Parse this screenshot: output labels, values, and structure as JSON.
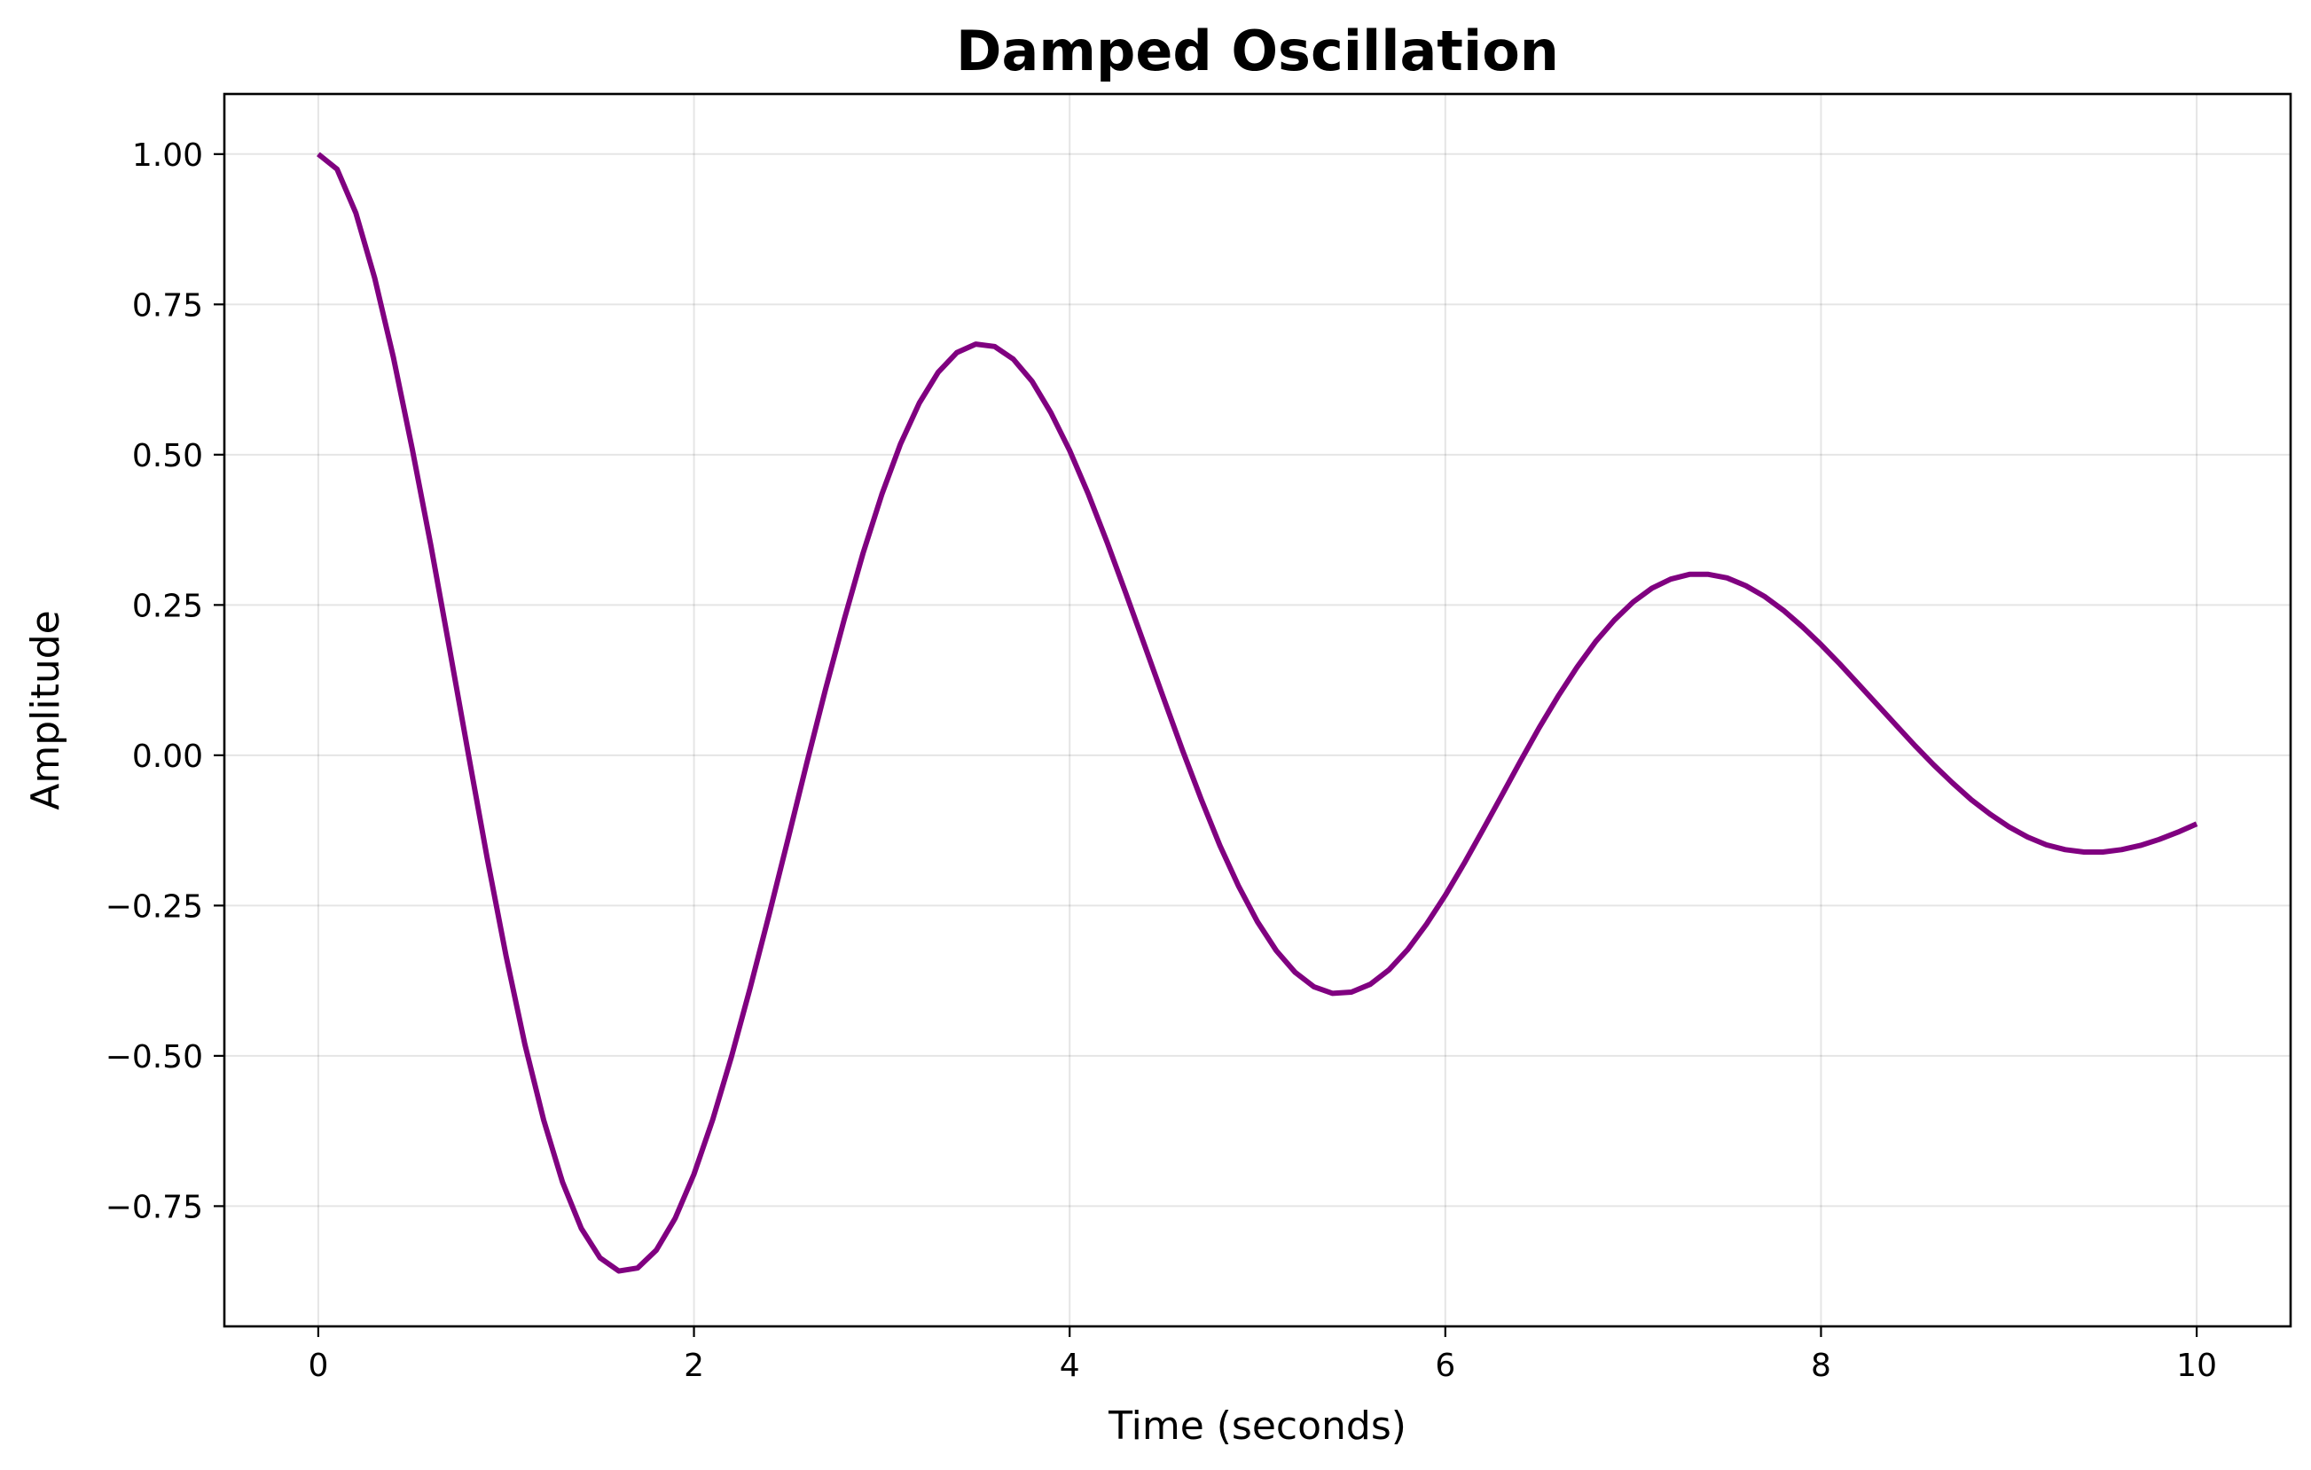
{
  "chart_data": {
    "type": "line",
    "title": "Damped Oscillation",
    "xlabel": "Time (seconds)",
    "ylabel": "Amplitude",
    "xlim": [
      -0.5,
      10.5
    ],
    "ylim": [
      -0.95,
      1.1
    ],
    "xticks": [
      0,
      2,
      4,
      6,
      8,
      10
    ],
    "xtick_labels": [
      "0",
      "2",
      "4",
      "6",
      "8",
      "10"
    ],
    "yticks": [
      1.0,
      0.75,
      0.5,
      0.25,
      0.0,
      -0.25,
      -0.5,
      -0.75
    ],
    "ytick_labels": [
      "1.00",
      "0.75",
      "0.50",
      "0.25",
      "0.00",
      "−0.25",
      "−0.50",
      "−0.75"
    ],
    "grid": true,
    "legend": "none",
    "colors": {
      "line": "#800080",
      "grid": "#e6e6e6",
      "frame": "#000000"
    },
    "series": [
      {
        "x": [
          0.0,
          0.1,
          0.2,
          0.3,
          0.4,
          0.5,
          0.6,
          0.7,
          0.8,
          0.9,
          1.0,
          1.1,
          1.2,
          1.3,
          1.4,
          1.5,
          1.6,
          1.7,
          1.8,
          1.9,
          2.0,
          2.1,
          2.2,
          2.3,
          2.4,
          2.5,
          2.6,
          2.7,
          2.8,
          2.9,
          3.0,
          3.1,
          3.2,
          3.3,
          3.4,
          3.5,
          3.6,
          3.7,
          3.8,
          3.9,
          4.0,
          4.1,
          4.2,
          4.3,
          4.4,
          4.5,
          4.6,
          4.7,
          4.8,
          4.9,
          5.0,
          5.1,
          5.2,
          5.3,
          5.4,
          5.5,
          5.6,
          5.7,
          5.8,
          5.9,
          6.0,
          6.1,
          6.2,
          6.3,
          6.4,
          6.5,
          6.6,
          6.7,
          6.8,
          6.9,
          7.0,
          7.1,
          7.2,
          7.3,
          7.4,
          7.5,
          7.6,
          7.7,
          7.8,
          7.9,
          8.0,
          8.1,
          8.2,
          8.3,
          8.4,
          8.5,
          8.6,
          8.7,
          8.8,
          8.9,
          9.0,
          9.1,
          9.2,
          9.3,
          9.4,
          9.5,
          9.6,
          9.7,
          9.8,
          9.9,
          10.0
        ],
        "y": [
          1.0,
          0.975,
          0.902,
          0.794,
          0.662,
          0.51,
          0.348,
          0.175,
          0.0,
          -0.172,
          -0.334,
          -0.481,
          -0.607,
          -0.71,
          -0.787,
          -0.836,
          -0.858,
          -0.853,
          -0.823,
          -0.77,
          -0.697,
          -0.606,
          -0.501,
          -0.386,
          -0.265,
          -0.14,
          -0.014,
          0.109,
          0.226,
          0.336,
          0.434,
          0.518,
          0.586,
          0.637,
          0.67,
          0.684,
          0.68,
          0.659,
          0.622,
          0.57,
          0.507,
          0.434,
          0.354,
          0.269,
          0.182,
          0.095,
          0.009,
          -0.073,
          -0.15,
          -0.218,
          -0.277,
          -0.325,
          -0.361,
          -0.385,
          -0.396,
          -0.394,
          -0.381,
          -0.357,
          -0.323,
          -0.281,
          -0.233,
          -0.18,
          -0.124,
          -0.067,
          -0.01,
          0.046,
          0.098,
          0.146,
          0.189,
          0.225,
          0.255,
          0.278,
          0.293,
          0.301,
          0.301,
          0.295,
          0.282,
          0.264,
          0.241,
          0.214,
          0.184,
          0.152,
          0.118,
          0.084,
          0.05,
          0.016,
          -0.016,
          -0.046,
          -0.074,
          -0.098,
          -0.119,
          -0.136,
          -0.149,
          -0.157,
          -0.161,
          -0.161,
          -0.157,
          -0.15,
          -0.14,
          -0.128,
          -0.114
        ]
      }
    ]
  }
}
